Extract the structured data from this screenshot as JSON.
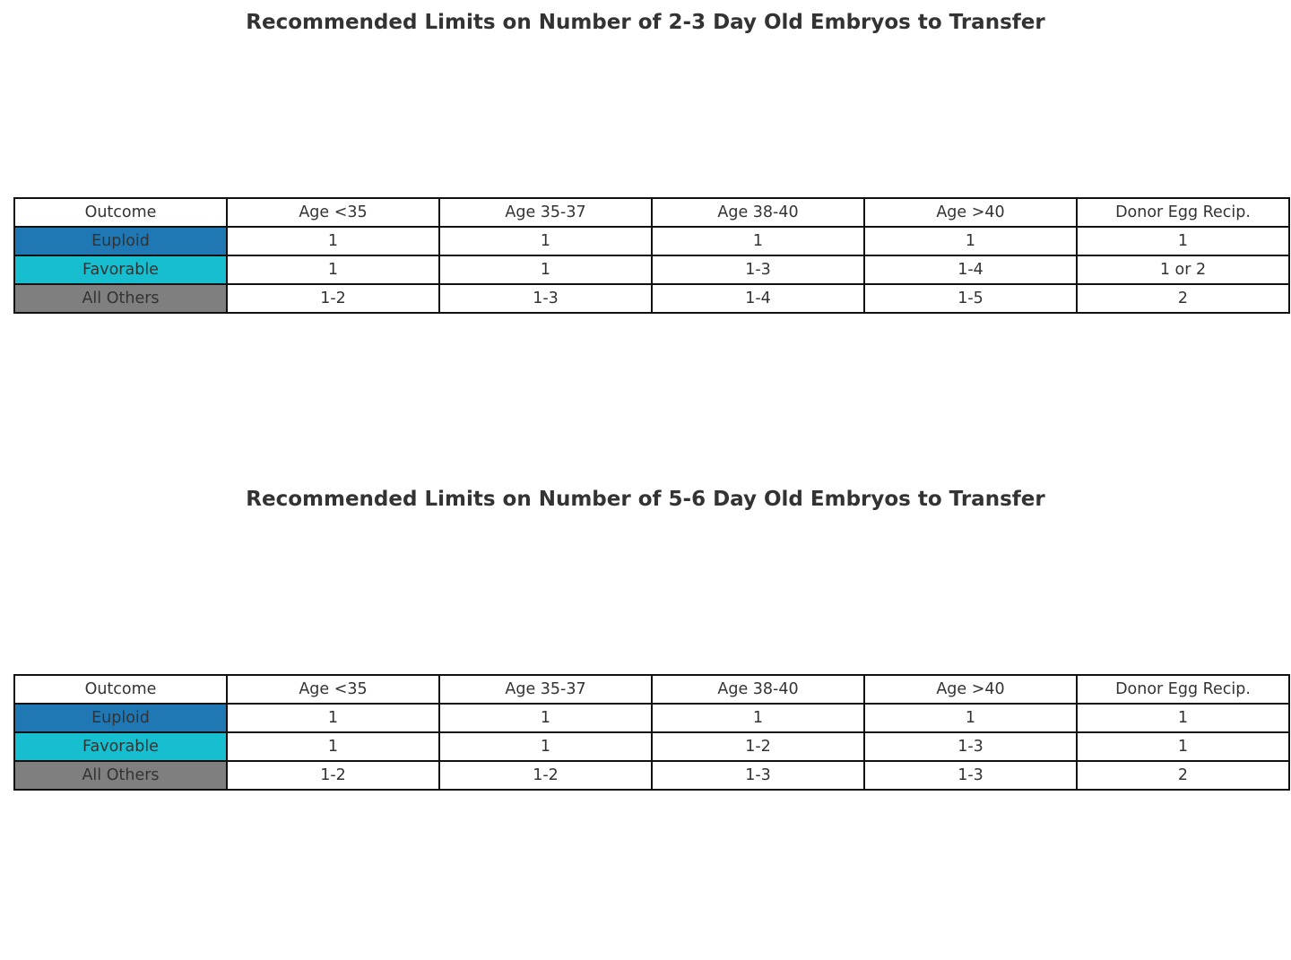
{
  "chart_data": [
    {
      "type": "table",
      "title": "Recommended Limits on Number of 2-3 Day Old Embryos to Transfer",
      "columns": [
        "Outcome",
        "Age <35",
        "Age 35-37",
        "Age 38-40",
        "Age >40",
        "Donor Egg Recip."
      ],
      "rows": [
        {
          "label": "Euploid",
          "color": "#1f77b4",
          "values": [
            "1",
            "1",
            "1",
            "1",
            "1"
          ]
        },
        {
          "label": "Favorable",
          "color": "#17becf",
          "values": [
            "1",
            "1",
            "1-3",
            "1-4",
            "1 or 2"
          ]
        },
        {
          "label": "All Others",
          "color": "#7f7f7f",
          "values": [
            "1-2",
            "1-3",
            "1-4",
            "1-5",
            "2"
          ]
        }
      ]
    },
    {
      "type": "table",
      "title": "Recommended Limits on Number of 5-6 Day Old Embryos to Transfer",
      "columns": [
        "Outcome",
        "Age <35",
        "Age 35-37",
        "Age 38-40",
        "Age >40",
        "Donor Egg Recip."
      ],
      "rows": [
        {
          "label": "Euploid",
          "color": "#1f77b4",
          "values": [
            "1",
            "1",
            "1",
            "1",
            "1"
          ]
        },
        {
          "label": "Favorable",
          "color": "#17becf",
          "values": [
            "1",
            "1",
            "1-2",
            "1-3",
            "1"
          ]
        },
        {
          "label": "All Others",
          "color": "#7f7f7f",
          "values": [
            "1-2",
            "1-2",
            "1-3",
            "1-3",
            "2"
          ]
        }
      ]
    }
  ]
}
